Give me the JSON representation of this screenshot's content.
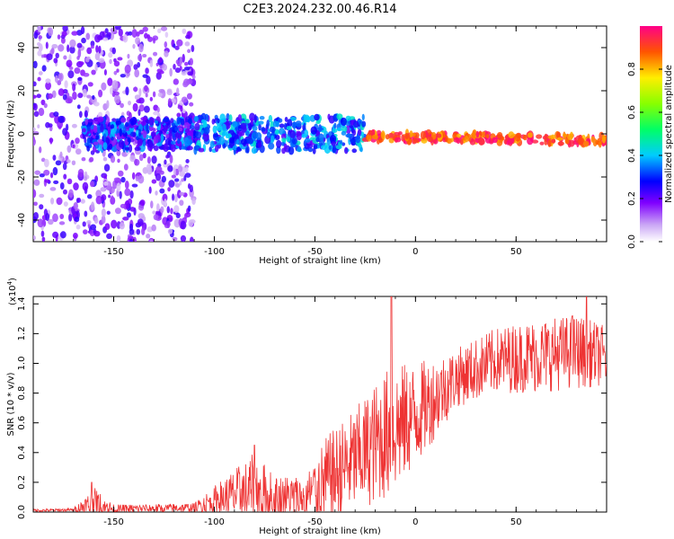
{
  "title": "C2E3.2024.232.00.46.R14",
  "chart_data": [
    {
      "type": "heatmap",
      "xlabel": "Height of straight line (km)",
      "ylabel": "Frequency (Hz)",
      "xlim": [
        -190,
        95
      ],
      "ylim": [
        -50,
        50
      ],
      "x_ticks": [
        -150,
        -100,
        -50,
        0,
        50
      ],
      "y_ticks": [
        -40,
        -20,
        0,
        20,
        40
      ],
      "colorbar": {
        "label": "Normalized spectral amplitude",
        "range": [
          0,
          1
        ],
        "ticks": [
          "0.0",
          "0.2",
          "0.4",
          "0.6",
          "0.8"
        ],
        "ticks_values": [
          0,
          0.2,
          0.4,
          0.6,
          0.8
        ]
      },
      "regions": [
        {
          "x": [
            -190,
            -110
          ],
          "freq_spread": [
            -50,
            50
          ],
          "amplitude": [
            0.05,
            0.25
          ]
        },
        {
          "x": [
            -165,
            -110
          ],
          "freq_spread": [
            -7,
            7
          ],
          "amplitude": [
            0.15,
            0.4
          ]
        },
        {
          "x": [
            -110,
            -25
          ],
          "freq_spread": [
            -8,
            8
          ],
          "amplitude": [
            0.2,
            0.45
          ]
        },
        {
          "x": [
            -25,
            95
          ],
          "freq_center": [
            -1,
            -3
          ],
          "freq_spread": [
            -4,
            4
          ],
          "amplitude": [
            0.8,
            1.0
          ]
        }
      ]
    },
    {
      "type": "line",
      "xlabel": "Height of straight line (km)",
      "ylabel": "SNR (10 * v/v)",
      "y_multiplier": "(x10⁴)",
      "y_multiplier_base": "(x10",
      "y_multiplier_exp": "4",
      "y_multiplier_close": ")",
      "xlim": [
        -190,
        95
      ],
      "ylim": [
        0,
        1.45
      ],
      "x_ticks": [
        -150,
        -100,
        -50,
        0,
        50
      ],
      "y_ticks": [
        0.0,
        0.2,
        0.4,
        0.6,
        0.8,
        1.0,
        1.2,
        1.4
      ],
      "y_tick_labels": [
        "0.0",
        "0.2",
        "0.4",
        "0.6",
        "0.8",
        "1.0",
        "1.2",
        "1.4"
      ],
      "series": [
        {
          "color": "#ee3333",
          "envelope": [
            {
              "x": -190,
              "base": 0.01,
              "noise": 0.01
            },
            {
              "x": -170,
              "base": 0.015,
              "noise": 0.01
            },
            {
              "x": -160,
              "base": 0.05,
              "noise": 0.12
            },
            {
              "x": -150,
              "base": 0.02,
              "noise": 0.03
            },
            {
              "x": -110,
              "base": 0.03,
              "noise": 0.03
            },
            {
              "x": -100,
              "base": 0.08,
              "noise": 0.1
            },
            {
              "x": -80,
              "base": 0.15,
              "noise": 0.25
            },
            {
              "x": -70,
              "base": 0.1,
              "noise": 0.15
            },
            {
              "x": -55,
              "base": 0.1,
              "noise": 0.15
            },
            {
              "x": -45,
              "base": 0.2,
              "noise": 0.3
            },
            {
              "x": -30,
              "base": 0.35,
              "noise": 0.35
            },
            {
              "x": -12,
              "base": 0.55,
              "noise": 0.45
            },
            {
              "x": 0,
              "base": 0.65,
              "noise": 0.35
            },
            {
              "x": 20,
              "base": 0.9,
              "noise": 0.2
            },
            {
              "x": 40,
              "base": 1.02,
              "noise": 0.22
            },
            {
              "x": 60,
              "base": 1.05,
              "noise": 0.25
            },
            {
              "x": 80,
              "base": 1.08,
              "noise": 0.25
            },
            {
              "x": 95,
              "base": 1.05,
              "noise": 0.2
            }
          ],
          "spikes": [
            {
              "x": -161,
              "y": 0.2
            },
            {
              "x": -80,
              "y": 0.45
            },
            {
              "x": -12,
              "y": 1.45
            },
            {
              "x": 78,
              "y": 1.32
            },
            {
              "x": 85,
              "y": 1.45
            }
          ]
        }
      ]
    }
  ]
}
